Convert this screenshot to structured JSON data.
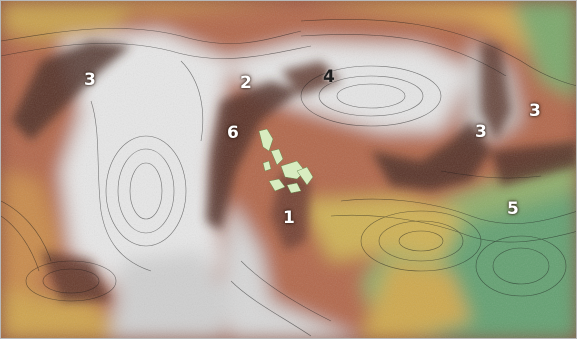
{
  "map": {
    "labels": [
      "3",
      "2",
      "4",
      "6",
      "3",
      "3",
      "1",
      "5"
    ]
  },
  "colors": {
    "snow": "#dcdcdc",
    "rock_gray": "#a9a29e",
    "cliff_dark": "#4a2b22",
    "slope_red": "#a25048",
    "slope_orange": "#c98a4a",
    "plateau_yellow": "#cfb152",
    "lowland_olive": "#9bab66",
    "valley_green": "#5f9e70",
    "vegetation_patch": "#d8ecc0",
    "contour_line": "#1a1a1a",
    "label_light": "#ffffff",
    "label_dark": "#1e1e1e"
  }
}
